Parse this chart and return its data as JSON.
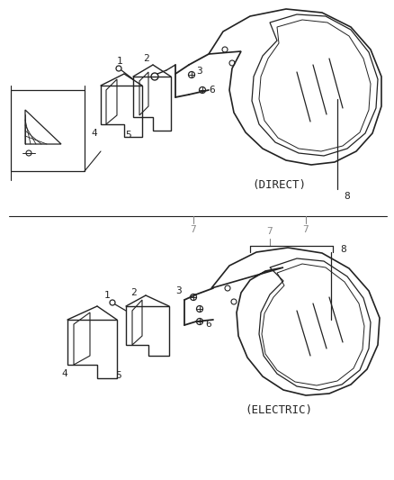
{
  "bg_color": "#ffffff",
  "line_color": "#222222",
  "gray_color": "#888888",
  "direct_label": "(DIRECT)",
  "electric_label": "(ELECTRIC)",
  "font_size": 8,
  "label_font_size": 8
}
